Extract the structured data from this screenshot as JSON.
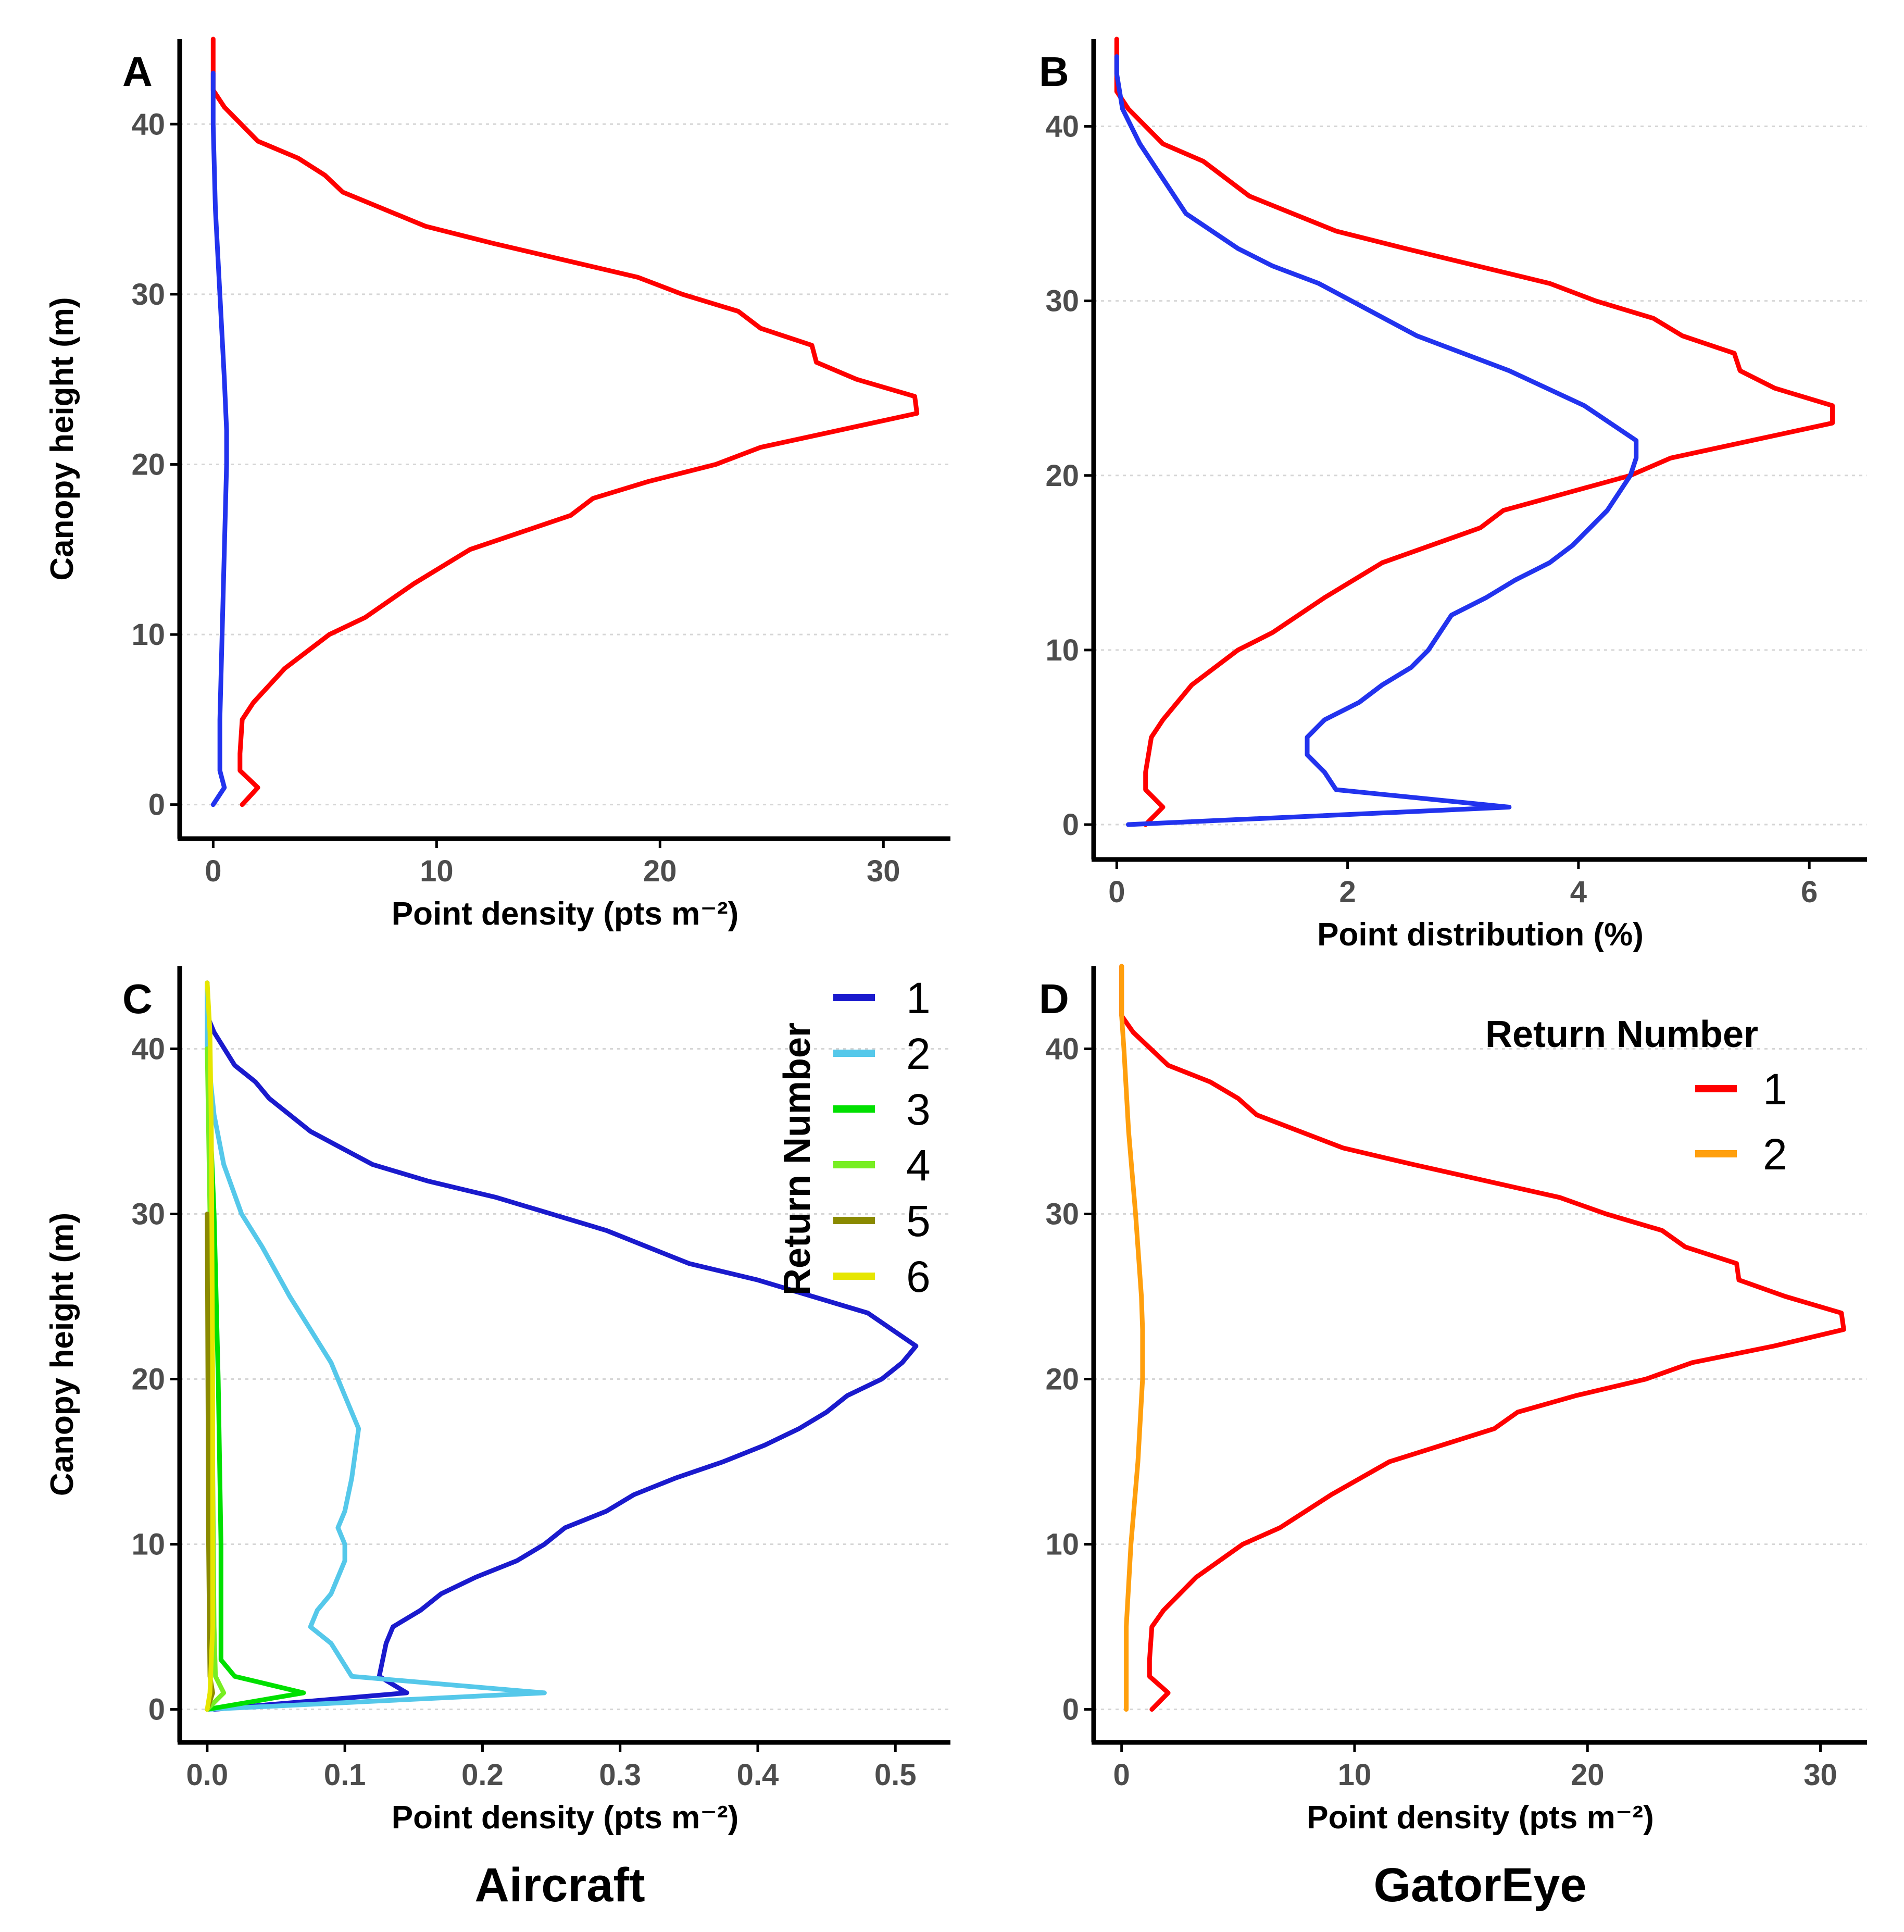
{
  "chart_data": [
    {
      "id": "A",
      "type": "line",
      "panel_label": "A",
      "xlabel": "Point density (pts m⁻²)",
      "ylabel": "Canopy height (m)",
      "xlim": [
        -1.5,
        33
      ],
      "ylim": [
        -2,
        45
      ],
      "xticks": [
        0,
        10,
        20,
        30
      ],
      "yticks": [
        0,
        10,
        20,
        30,
        40
      ],
      "series": [
        {
          "name": "red",
          "color": "#ff0000",
          "points": [
            [
              1.3,
              0
            ],
            [
              2,
              1
            ],
            [
              1.2,
              2
            ],
            [
              1.2,
              3
            ],
            [
              1.3,
              5
            ],
            [
              1.8,
              6
            ],
            [
              3.2,
              8
            ],
            [
              5.2,
              10
            ],
            [
              6.8,
              11
            ],
            [
              9,
              13
            ],
            [
              11.5,
              15
            ],
            [
              16,
              17
            ],
            [
              17,
              18
            ],
            [
              19.5,
              19
            ],
            [
              22.5,
              20
            ],
            [
              24.5,
              21
            ],
            [
              28,
              22
            ],
            [
              31.5,
              23
            ],
            [
              31.4,
              24
            ],
            [
              28.8,
              25
            ],
            [
              27,
              26
            ],
            [
              26.8,
              27
            ],
            [
              24.5,
              28
            ],
            [
              23.5,
              29
            ],
            [
              21,
              30
            ],
            [
              19,
              31
            ],
            [
              12.5,
              33
            ],
            [
              9.5,
              34
            ],
            [
              5.8,
              36
            ],
            [
              5,
              37
            ],
            [
              3.8,
              38
            ],
            [
              2,
              39
            ],
            [
              0.5,
              41
            ],
            [
              0,
              42
            ],
            [
              0,
              45
            ]
          ]
        },
        {
          "name": "blue",
          "color": "#2233ee",
          "points": [
            [
              0,
              0
            ],
            [
              0.5,
              1
            ],
            [
              0.3,
              2
            ],
            [
              0.3,
              5
            ],
            [
              0.4,
              10
            ],
            [
              0.5,
              15
            ],
            [
              0.6,
              20
            ],
            [
              0.6,
              22
            ],
            [
              0.5,
              25
            ],
            [
              0.3,
              30
            ],
            [
              0.1,
              35
            ],
            [
              0,
              40
            ],
            [
              0,
              43
            ]
          ]
        }
      ]
    },
    {
      "id": "B",
      "type": "line",
      "panel_label": "B",
      "xlabel": "Point distribution (%)",
      "xlim": [
        -0.2,
        6.5
      ],
      "ylim": [
        -2,
        45
      ],
      "xticks": [
        0,
        2,
        4,
        6
      ],
      "yticks": [
        0,
        10,
        20,
        30,
        40
      ],
      "series": [
        {
          "name": "red",
          "color": "#ff0000",
          "points": [
            [
              0.25,
              0
            ],
            [
              0.4,
              1
            ],
            [
              0.25,
              2
            ],
            [
              0.25,
              3
            ],
            [
              0.3,
              5
            ],
            [
              0.4,
              6
            ],
            [
              0.65,
              8
            ],
            [
              1.05,
              10
            ],
            [
              1.35,
              11
            ],
            [
              1.8,
              13
            ],
            [
              2.3,
              15
            ],
            [
              3.15,
              17
            ],
            [
              3.35,
              18
            ],
            [
              3.9,
              19
            ],
            [
              4.45,
              20
            ],
            [
              4.8,
              21
            ],
            [
              5.5,
              22
            ],
            [
              6.2,
              23
            ],
            [
              6.2,
              24
            ],
            [
              5.7,
              25
            ],
            [
              5.4,
              26
            ],
            [
              5.35,
              27
            ],
            [
              4.9,
              28
            ],
            [
              4.65,
              29
            ],
            [
              4.15,
              30
            ],
            [
              3.75,
              31
            ],
            [
              2.5,
              33
            ],
            [
              1.9,
              34
            ],
            [
              1.15,
              36
            ],
            [
              0.95,
              37
            ],
            [
              0.75,
              38
            ],
            [
              0.4,
              39
            ],
            [
              0.1,
              41
            ],
            [
              0,
              42
            ],
            [
              0,
              45
            ]
          ]
        },
        {
          "name": "blue",
          "color": "#2233ee",
          "points": [
            [
              0.1,
              0
            ],
            [
              3.4,
              1
            ],
            [
              1.9,
              2
            ],
            [
              1.8,
              3
            ],
            [
              1.65,
              4
            ],
            [
              1.65,
              5
            ],
            [
              1.8,
              6
            ],
            [
              2.1,
              7
            ],
            [
              2.3,
              8
            ],
            [
              2.55,
              9
            ],
            [
              2.7,
              10
            ],
            [
              2.8,
              11
            ],
            [
              2.9,
              12
            ],
            [
              3.2,
              13
            ],
            [
              3.45,
              14
            ],
            [
              3.75,
              15
            ],
            [
              3.95,
              16
            ],
            [
              4.1,
              17
            ],
            [
              4.25,
              18
            ],
            [
              4.35,
              19
            ],
            [
              4.45,
              20
            ],
            [
              4.5,
              21
            ],
            [
              4.5,
              22
            ],
            [
              4.05,
              24
            ],
            [
              3.4,
              26
            ],
            [
              2.6,
              28
            ],
            [
              1.75,
              31
            ],
            [
              1.35,
              32
            ],
            [
              1.05,
              33
            ],
            [
              0.6,
              35
            ],
            [
              0.4,
              37
            ],
            [
              0.2,
              39
            ],
            [
              0.05,
              41
            ],
            [
              0,
              43
            ],
            [
              0,
              44
            ]
          ]
        }
      ]
    },
    {
      "id": "C",
      "type": "line",
      "panel_label": "C",
      "xlabel": "Point density (pts m⁻²)",
      "ylabel": "Canopy height (m)",
      "xlim": [
        -0.02,
        0.54
      ],
      "ylim": [
        -2,
        45
      ],
      "xticks": [
        0.0,
        0.1,
        0.2,
        0.3,
        0.4,
        0.5
      ],
      "tick_labels_x": [
        "0.0",
        "0.1",
        "0.2",
        "0.3",
        "0.4",
        "0.5"
      ],
      "yticks": [
        0,
        10,
        20,
        30,
        40
      ],
      "legend": {
        "title": "Return Number",
        "position": "top-right"
      },
      "series": [
        {
          "name": "1",
          "color": "#1a1acd",
          "points": [
            [
              0.005,
              0
            ],
            [
              0.145,
              1
            ],
            [
              0.125,
              2
            ],
            [
              0.13,
              4
            ],
            [
              0.135,
              5
            ],
            [
              0.155,
              6
            ],
            [
              0.17,
              7
            ],
            [
              0.195,
              8
            ],
            [
              0.225,
              9
            ],
            [
              0.245,
              10
            ],
            [
              0.26,
              11
            ],
            [
              0.29,
              12
            ],
            [
              0.31,
              13
            ],
            [
              0.34,
              14
            ],
            [
              0.375,
              15
            ],
            [
              0.405,
              16
            ],
            [
              0.43,
              17
            ],
            [
              0.45,
              18
            ],
            [
              0.465,
              19
            ],
            [
              0.49,
              20
            ],
            [
              0.505,
              21
            ],
            [
              0.515,
              22
            ],
            [
              0.48,
              24
            ],
            [
              0.4,
              26
            ],
            [
              0.35,
              27
            ],
            [
              0.29,
              29
            ],
            [
              0.21,
              31
            ],
            [
              0.16,
              32
            ],
            [
              0.12,
              33
            ],
            [
              0.075,
              35
            ],
            [
              0.045,
              37
            ],
            [
              0.035,
              38
            ],
            [
              0.02,
              39
            ],
            [
              0.005,
              41
            ],
            [
              0,
              42
            ],
            [
              0,
              44
            ]
          ]
        },
        {
          "name": "2",
          "color": "#55c8ea",
          "points": [
            [
              0,
              0
            ],
            [
              0.245,
              1
            ],
            [
              0.105,
              2
            ],
            [
              0.09,
              4
            ],
            [
              0.075,
              5
            ],
            [
              0.08,
              6
            ],
            [
              0.09,
              7
            ],
            [
              0.095,
              8
            ],
            [
              0.1,
              9
            ],
            [
              0.1,
              10
            ],
            [
              0.095,
              11
            ],
            [
              0.1,
              12
            ],
            [
              0.105,
              14
            ],
            [
              0.11,
              17
            ],
            [
              0.1,
              19
            ],
            [
              0.09,
              21
            ],
            [
              0.075,
              23
            ],
            [
              0.06,
              25
            ],
            [
              0.04,
              28
            ],
            [
              0.025,
              30
            ],
            [
              0.012,
              33
            ],
            [
              0.005,
              36
            ],
            [
              0,
              40
            ],
            [
              0,
              44
            ]
          ]
        },
        {
          "name": "3",
          "color": "#00e000",
          "points": [
            [
              0,
              0
            ],
            [
              0.07,
              1
            ],
            [
              0.02,
              2
            ],
            [
              0.01,
              3
            ],
            [
              0.01,
              10
            ],
            [
              0.008,
              20
            ],
            [
              0.005,
              30
            ],
            [
              0,
              40
            ]
          ]
        },
        {
          "name": "4",
          "color": "#77ee22",
          "points": [
            [
              0,
              0
            ],
            [
              0.012,
              1
            ],
            [
              0.006,
              2
            ],
            [
              0.005,
              5
            ],
            [
              0.004,
              15
            ],
            [
              0.002,
              30
            ],
            [
              0,
              40
            ]
          ]
        },
        {
          "name": "5",
          "color": "#8a8a00",
          "points": [
            [
              0,
              0
            ],
            [
              0.004,
              1
            ],
            [
              0.002,
              2
            ],
            [
              0.001,
              10
            ],
            [
              0,
              30
            ]
          ]
        },
        {
          "name": "6",
          "color": "#e6e600",
          "points": [
            [
              0,
              0
            ],
            [
              0.002,
              1
            ],
            [
              0.004,
              5
            ],
            [
              0.004,
              20
            ],
            [
              0.003,
              35
            ],
            [
              0.002,
              41
            ],
            [
              0,
              44
            ]
          ]
        }
      ]
    },
    {
      "id": "D",
      "type": "line",
      "panel_label": "D",
      "xlabel": "Point density (pts m⁻²)",
      "xlim": [
        -1.2,
        32
      ],
      "ylim": [
        -2,
        45
      ],
      "xticks": [
        0,
        10,
        20,
        30
      ],
      "yticks": [
        0,
        10,
        20,
        30,
        40
      ],
      "legend": {
        "title": "Return Number",
        "position": "top-right"
      },
      "series": [
        {
          "name": "1",
          "color": "#ff0000",
          "points": [
            [
              1.3,
              0
            ],
            [
              2,
              1
            ],
            [
              1.2,
              2
            ],
            [
              1.2,
              3
            ],
            [
              1.3,
              5
            ],
            [
              1.8,
              6
            ],
            [
              3.2,
              8
            ],
            [
              5.2,
              10
            ],
            [
              6.8,
              11
            ],
            [
              9,
              13
            ],
            [
              11.5,
              15
            ],
            [
              16,
              17
            ],
            [
              17,
              18
            ],
            [
              19.5,
              19
            ],
            [
              22.5,
              20
            ],
            [
              24.5,
              21
            ],
            [
              28,
              22
            ],
            [
              31,
              23
            ],
            [
              30.9,
              24
            ],
            [
              28.5,
              25
            ],
            [
              26.5,
              26
            ],
            [
              26.4,
              27
            ],
            [
              24.2,
              28
            ],
            [
              23.2,
              29
            ],
            [
              20.8,
              30
            ],
            [
              18.8,
              31
            ],
            [
              12.5,
              33
            ],
            [
              9.5,
              34
            ],
            [
              5.8,
              36
            ],
            [
              5,
              37
            ],
            [
              3.8,
              38
            ],
            [
              2,
              39
            ],
            [
              0.5,
              41
            ],
            [
              0,
              42
            ],
            [
              0,
              45
            ]
          ]
        },
        {
          "name": "2",
          "color": "#ff9f0d",
          "points": [
            [
              0.2,
              0
            ],
            [
              0.2,
              5
            ],
            [
              0.4,
              10
            ],
            [
              0.7,
              15
            ],
            [
              0.9,
              20
            ],
            [
              0.9,
              23
            ],
            [
              0.85,
              25
            ],
            [
              0.6,
              30
            ],
            [
              0.3,
              35
            ],
            [
              0.1,
              40
            ],
            [
              0,
              42
            ],
            [
              0,
              45
            ]
          ]
        }
      ]
    }
  ],
  "captions": {
    "left": "Aircraft",
    "right": "GatorEye"
  }
}
